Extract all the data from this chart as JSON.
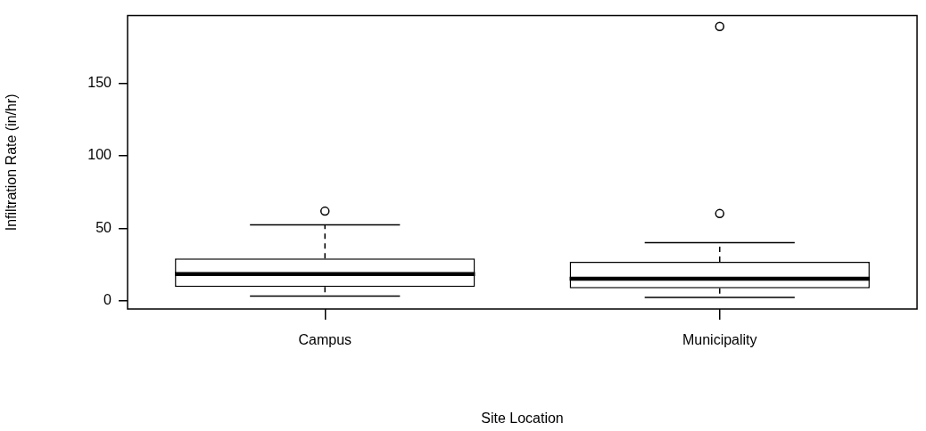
{
  "chart_data": {
    "type": "box",
    "xlabel": "Site Location",
    "ylabel": "Infiltration Rate (in/hr)",
    "categories": [
      "Campus",
      "Municipality"
    ],
    "boxes": [
      {
        "low": 3.4,
        "q1": 9.7,
        "median": 18.6,
        "q3": 29.3,
        "high": 52.4,
        "outliers": [
          61.9
        ]
      },
      {
        "low": 2.4,
        "q1": 8.8,
        "median": 15.3,
        "q3": 27.0,
        "high": 40.2,
        "outliers": [
          60.2,
          189.0
        ]
      }
    ],
    "ylim": [
      -5.5,
      196.5
    ],
    "yticks": [
      0,
      50,
      100,
      150
    ],
    "grid": false,
    "legend": false
  }
}
